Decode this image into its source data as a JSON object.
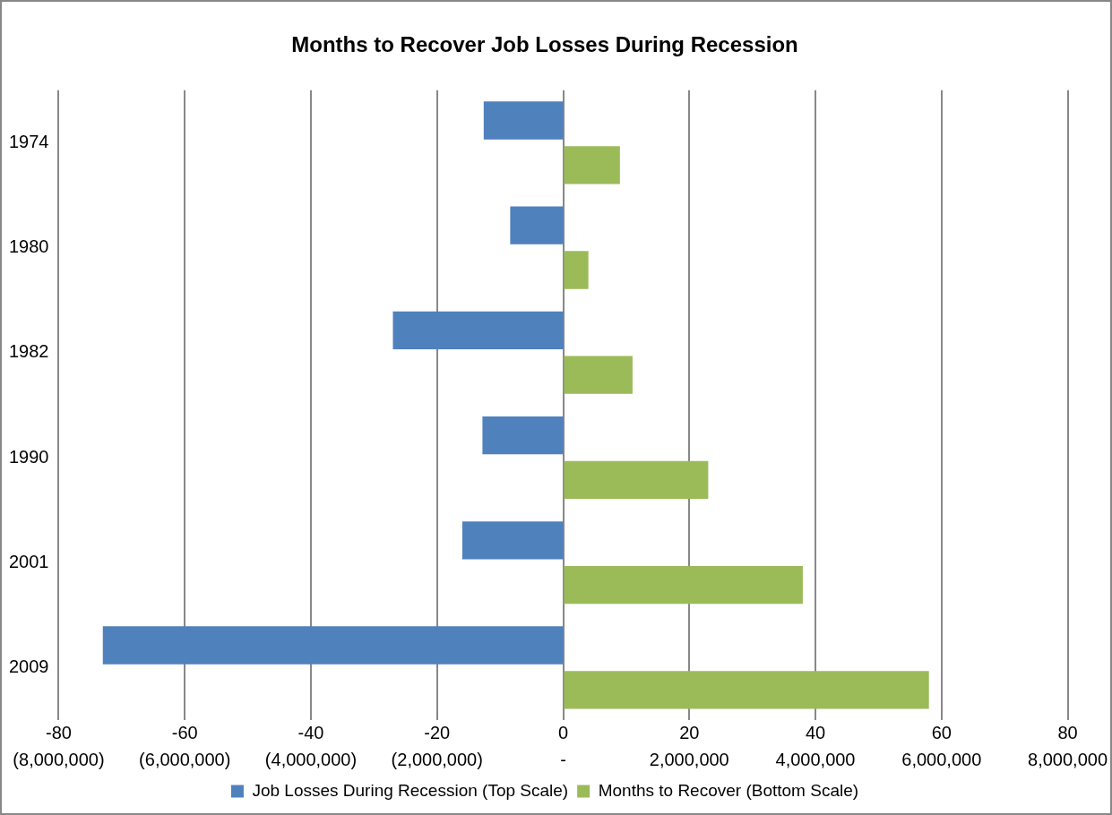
{
  "chart_data": {
    "type": "bar",
    "orientation": "horizontal",
    "title": "Months to Recover Job Losses During Recession",
    "categories": [
      "1974",
      "1980",
      "1982",
      "1990",
      "2001",
      "2009"
    ],
    "series": [
      {
        "name": "Job Losses During Recession (Top Scale)",
        "color": "#4f81bd",
        "axis": "x2",
        "values": [
          -1260000,
          -840000,
          -2700000,
          -1280000,
          -1600000,
          -7300000
        ]
      },
      {
        "name": "Months to Recover (Bottom Scale)",
        "color": "#9bbb59",
        "values": [
          9,
          4,
          11,
          23,
          38,
          58
        ]
      }
    ],
    "xlim": [
      -80,
      80
    ],
    "xticks": [
      -80,
      -60,
      -40,
      -20,
      0,
      20,
      40,
      60,
      80
    ],
    "x2lim": [
      -8000000,
      8000000
    ],
    "x2ticks": [
      {
        "value": -8000000,
        "label": "(8,000,000)"
      },
      {
        "value": -6000000,
        "label": "(6,000,000)"
      },
      {
        "value": -4000000,
        "label": "(4,000,000)"
      },
      {
        "value": -2000000,
        "label": "(2,000,000)"
      },
      {
        "value": 0,
        "label": "-"
      },
      {
        "value": 2000000,
        "label": "2,000,000"
      },
      {
        "value": 4000000,
        "label": "4,000,000"
      },
      {
        "value": 6000000,
        "label": "6,000,000"
      },
      {
        "value": 8000000,
        "label": "8,000,000"
      }
    ],
    "grid": "x",
    "legend": "bottom"
  }
}
